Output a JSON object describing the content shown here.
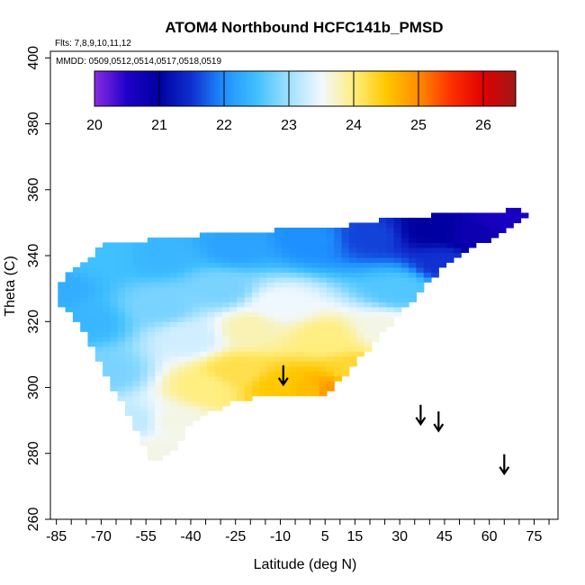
{
  "chart_data": {
    "type": "heatmap",
    "title": "ATOM4 Northbound HCFC141b_PMSD",
    "flights_note": "Flts: 7,8,9,10,11,12",
    "dates_note": "MMDD: 0509,0512,0514,0517,0518,0519",
    "xlabel": "Latitude (deg N)",
    "ylabel": "Theta (C)",
    "xlim": [
      -87,
      83
    ],
    "ylim": [
      260,
      402
    ],
    "x_ticks": [
      -85,
      -70,
      -55,
      -40,
      -25,
      -10,
      5,
      15,
      30,
      45,
      60,
      75
    ],
    "x_minor_step": 5,
    "y_ticks": [
      260,
      280,
      300,
      320,
      340,
      360,
      380,
      400
    ],
    "colorbar": {
      "ticks": [
        20,
        21,
        22,
        23,
        24,
        25,
        26
      ],
      "range": [
        20,
        26.5
      ],
      "stops": [
        {
          "v": 20.0,
          "c": "#8a2be2"
        },
        {
          "v": 20.5,
          "c": "#1f00c8"
        },
        {
          "v": 21.0,
          "c": "#0000a0"
        },
        {
          "v": 21.5,
          "c": "#1030d0"
        },
        {
          "v": 22.0,
          "c": "#1e90ff"
        },
        {
          "v": 22.5,
          "c": "#40c0ff"
        },
        {
          "v": 23.0,
          "c": "#a0e0ff"
        },
        {
          "v": 23.5,
          "c": "#f0f8ff"
        },
        {
          "v": 24.0,
          "c": "#ffee80"
        },
        {
          "v": 24.5,
          "c": "#ffc800"
        },
        {
          "v": 25.0,
          "c": "#ff8c00"
        },
        {
          "v": 25.5,
          "c": "#ff3000"
        },
        {
          "v": 26.0,
          "c": "#e00000"
        },
        {
          "v": 26.5,
          "c": "#a01818"
        }
      ]
    },
    "field": {
      "region": [
        [
          -85,
          331
        ],
        [
          -72,
          341
        ],
        [
          -72,
          343
        ],
        [
          -40,
          346
        ],
        [
          -25,
          347
        ],
        [
          -6,
          348
        ],
        [
          10,
          349
        ],
        [
          25,
          351
        ],
        [
          50,
          353
        ],
        [
          70,
          354
        ],
        [
          73,
          352
        ],
        [
          45,
          337
        ],
        [
          30,
          322
        ],
        [
          12,
          304
        ],
        [
          6,
          298
        ],
        [
          0,
          298
        ],
        [
          -10,
          298
        ],
        [
          -25,
          296
        ],
        [
          -41,
          289
        ],
        [
          -45,
          281
        ],
        [
          -51,
          278
        ],
        [
          -54,
          278
        ],
        [
          -60,
          291
        ],
        [
          -68,
          303
        ],
        [
          -76,
          318
        ],
        [
          -85,
          327
        ]
      ],
      "anchors": [
        {
          "x": -85,
          "y": 330,
          "v": 22.3
        },
        {
          "x": -75,
          "y": 320,
          "v": 22.4
        },
        {
          "x": -68,
          "y": 305,
          "v": 22.8
        },
        {
          "x": -60,
          "y": 290,
          "v": 23.2
        },
        {
          "x": -53,
          "y": 280,
          "v": 23.6
        },
        {
          "x": -45,
          "y": 290,
          "v": 23.6
        },
        {
          "x": -35,
          "y": 300,
          "v": 24.0
        },
        {
          "x": -25,
          "y": 305,
          "v": 24.2
        },
        {
          "x": -10,
          "y": 300,
          "v": 24.5
        },
        {
          "x": 0,
          "y": 299,
          "v": 24.6
        },
        {
          "x": 7,
          "y": 299,
          "v": 24.9
        },
        {
          "x": 15,
          "y": 305,
          "v": 24.3
        },
        {
          "x": 25,
          "y": 318,
          "v": 23.6
        },
        {
          "x": -20,
          "y": 318,
          "v": 23.8
        },
        {
          "x": -10,
          "y": 325,
          "v": 23.5
        },
        {
          "x": 5,
          "y": 315,
          "v": 24.0
        },
        {
          "x": 30,
          "y": 330,
          "v": 22.6
        },
        {
          "x": 45,
          "y": 338,
          "v": 21.5
        },
        {
          "x": 55,
          "y": 346,
          "v": 20.8
        },
        {
          "x": 65,
          "y": 351,
          "v": 20.6
        },
        {
          "x": 40,
          "y": 348,
          "v": 21.0
        },
        {
          "x": 20,
          "y": 346,
          "v": 21.6
        },
        {
          "x": 0,
          "y": 345,
          "v": 22.0
        },
        {
          "x": -25,
          "y": 343,
          "v": 22.2
        },
        {
          "x": -50,
          "y": 340,
          "v": 22.4
        },
        {
          "x": -70,
          "y": 340,
          "v": 22.5
        },
        {
          "x": -50,
          "y": 325,
          "v": 22.8
        },
        {
          "x": -40,
          "y": 315,
          "v": 23.3
        },
        {
          "x": -30,
          "y": 330,
          "v": 22.8
        }
      ]
    },
    "markers": [
      {
        "x": -9,
        "y": 301
      },
      {
        "x": 37,
        "y": 289
      },
      {
        "x": 43,
        "y": 287
      },
      {
        "x": 65,
        "y": 274
      }
    ]
  }
}
